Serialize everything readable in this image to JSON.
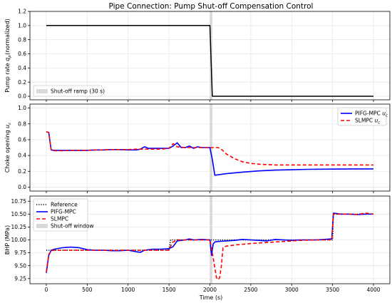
{
  "chart_data": [
    {
      "type": "line",
      "title": "Pipe Connection: Pump Shut-off Compensation Control",
      "ylabel": "Pump rate q_p (normalized)",
      "xlim": [
        -200,
        4200
      ],
      "ylim": [
        -0.05,
        1.2
      ],
      "yticks": [
        "0.0",
        "0.2",
        "0.4",
        "0.6",
        "0.8",
        "1.0",
        "1.2"
      ],
      "xticks_shown": false,
      "grid": true,
      "shaded_region": {
        "name": "Shut-off ramp (30 s)",
        "x": [
          2000,
          2030
        ],
        "color": "#d9d9d9"
      },
      "legend": {
        "placement": "lower-left",
        "entries": [
          "Shut-off ramp (30 s)"
        ]
      },
      "series": [
        {
          "color": "#000000",
          "style": "solid",
          "x": [
            0,
            2000,
            2030,
            4000
          ],
          "y": [
            1.0,
            1.0,
            0.0,
            0.0
          ]
        }
      ]
    },
    {
      "type": "line",
      "ylabel": "Choke opening u_c",
      "xlim": [
        -200,
        4200
      ],
      "ylim": [
        -0.05,
        1.05
      ],
      "yticks": [
        "0.0",
        "0.2",
        "0.4",
        "0.6",
        "0.8",
        "1.0"
      ],
      "xticks_shown": false,
      "grid": true,
      "shaded_region": {
        "x": [
          2000,
          2030
        ],
        "color": "#d9d9d9"
      },
      "legend": {
        "placement": "top-right",
        "entries": [
          "PIFG-MPC u_c",
          "SLMPC u_c"
        ]
      },
      "series": [
        {
          "name": "PIFG-MPC u_c",
          "color": "#0000ff",
          "style": "solid",
          "x": [
            0,
            30,
            60,
            100,
            200,
            300,
            400,
            500,
            600,
            700,
            800,
            900,
            1000,
            1100,
            1150,
            1200,
            1250,
            1300,
            1400,
            1500,
            1550,
            1600,
            1650,
            1700,
            1750,
            1800,
            1850,
            1900,
            1950,
            2000,
            2030,
            2060,
            2200,
            2400,
            2600,
            2800,
            3000,
            3200,
            3500,
            3800,
            4000
          ],
          "y": [
            0.7,
            0.69,
            0.47,
            0.465,
            0.465,
            0.465,
            0.465,
            0.465,
            0.47,
            0.47,
            0.475,
            0.475,
            0.47,
            0.47,
            0.48,
            0.51,
            0.49,
            0.49,
            0.49,
            0.49,
            0.52,
            0.56,
            0.5,
            0.5,
            0.52,
            0.49,
            0.51,
            0.5,
            0.5,
            0.5,
            0.35,
            0.15,
            0.17,
            0.19,
            0.205,
            0.215,
            0.22,
            0.225,
            0.228,
            0.23,
            0.23
          ]
        },
        {
          "name": "SLMPC u_c",
          "color": "#ff0000",
          "style": "dashed",
          "x": [
            0,
            30,
            60,
            100,
            200,
            300,
            400,
            500,
            600,
            700,
            800,
            900,
            1000,
            1100,
            1200,
            1300,
            1400,
            1500,
            1550,
            1600,
            1700,
            1800,
            1900,
            2000,
            2100,
            2150,
            2200,
            2300,
            2400,
            2500,
            2600,
            2800,
            3000,
            3500,
            4000
          ],
          "y": [
            0.7,
            0.69,
            0.47,
            0.46,
            0.46,
            0.465,
            0.465,
            0.465,
            0.47,
            0.47,
            0.475,
            0.475,
            0.475,
            0.48,
            0.48,
            0.48,
            0.48,
            0.49,
            0.55,
            0.51,
            0.5,
            0.5,
            0.5,
            0.5,
            0.5,
            0.47,
            0.42,
            0.36,
            0.32,
            0.3,
            0.29,
            0.28,
            0.28,
            0.28,
            0.28
          ]
        }
      ]
    },
    {
      "type": "line",
      "xlabel": "Time (s)",
      "ylabel": "BHP (MPa)",
      "xlim": [
        -200,
        4200
      ],
      "ylim": [
        9.15,
        10.85
      ],
      "yticks": [
        "9.25",
        "9.50",
        "9.75",
        "10.00",
        "10.25",
        "10.50",
        "10.75"
      ],
      "xticks": [
        "0",
        "500",
        "1000",
        "1500",
        "2000",
        "2500",
        "3000",
        "3500",
        "4000"
      ],
      "grid": true,
      "shaded_region": {
        "name": "Shut-off window",
        "x": [
          2000,
          2030
        ],
        "color": "#d9d9d9"
      },
      "legend": {
        "placement": "top-left",
        "entries": [
          "Reference",
          "PIFG-MPC",
          "SLMPC",
          "Shut-off window"
        ]
      },
      "series": [
        {
          "name": "Reference",
          "color": "#000000",
          "style": "dotted",
          "x": [
            0,
            1500,
            1520,
            3500,
            3510,
            4000
          ],
          "y": [
            9.8,
            9.8,
            10.0,
            10.0,
            10.5,
            10.5
          ]
        },
        {
          "name": "PIFG-MPC",
          "color": "#0000ff",
          "style": "solid",
          "x": [
            0,
            30,
            60,
            100,
            200,
            300,
            400,
            500,
            600,
            700,
            800,
            900,
            1000,
            1100,
            1150,
            1200,
            1300,
            1400,
            1500,
            1550,
            1600,
            1700,
            1750,
            1800,
            1900,
            2000,
            2020,
            2040,
            2060,
            2100,
            2200,
            2300,
            2400,
            2500,
            2600,
            2700,
            2800,
            2900,
            3000,
            3100,
            3200,
            3300,
            3400,
            3490,
            3510,
            3600,
            3700,
            3800,
            3900,
            4000
          ],
          "y": [
            9.36,
            9.7,
            9.8,
            9.82,
            9.85,
            9.86,
            9.85,
            9.81,
            9.8,
            9.8,
            9.79,
            9.79,
            9.8,
            9.77,
            9.76,
            9.8,
            9.82,
            9.82,
            9.83,
            9.87,
            9.98,
            10.0,
            10.02,
            10.0,
            10.01,
            10.0,
            9.7,
            9.92,
            9.96,
            9.97,
            9.98,
            9.99,
            10.01,
            10.0,
            9.99,
            9.98,
            10.01,
            10.0,
            9.99,
            10.0,
            10.0,
            10.0,
            10.01,
            10.02,
            10.52,
            10.5,
            10.5,
            10.49,
            10.5,
            10.5
          ]
        },
        {
          "name": "SLMPC",
          "color": "#ff0000",
          "style": "dashed",
          "x": [
            0,
            30,
            60,
            100,
            200,
            300,
            400,
            500,
            600,
            700,
            800,
            900,
            1000,
            1100,
            1200,
            1300,
            1400,
            1500,
            1540,
            1600,
            1700,
            1800,
            1900,
            2000,
            2040,
            2080,
            2100,
            2120,
            2140,
            2160,
            2200,
            2300,
            2500,
            2700,
            2900,
            3100,
            3300,
            3490,
            3510,
            3600,
            3700,
            3800,
            3900,
            4000
          ],
          "y": [
            9.38,
            9.72,
            9.79,
            9.8,
            9.8,
            9.8,
            9.8,
            9.8,
            9.8,
            9.8,
            9.8,
            9.8,
            9.8,
            9.8,
            9.8,
            9.8,
            9.8,
            9.8,
            9.95,
            10.0,
            10.0,
            10.0,
            10.0,
            10.0,
            9.65,
            9.27,
            9.23,
            9.27,
            9.5,
            9.85,
            9.88,
            9.9,
            9.93,
            9.95,
            9.97,
            9.99,
            10.0,
            10.0,
            10.5,
            10.5,
            10.5,
            10.49,
            10.52,
            10.5
          ]
        }
      ]
    }
  ]
}
